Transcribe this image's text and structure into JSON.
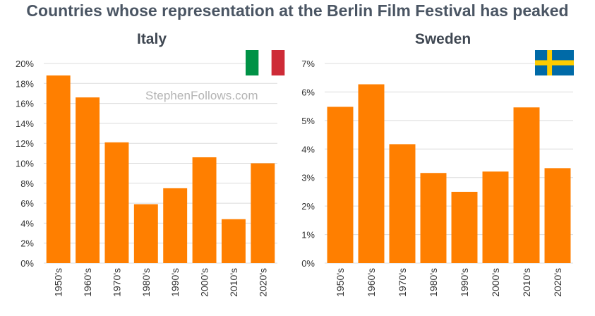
{
  "title": "Countries whose representation at the Berlin Film Festival has peaked",
  "watermark": "StephenFollows.com",
  "colors": {
    "bar": "#ff7f00",
    "grid": "#dcdcdc",
    "axis_text": "#333333"
  },
  "flags": {
    "italy": {
      "name": "italy-flag",
      "colors": [
        "#009246",
        "#ffffff",
        "#ce2b37"
      ]
    },
    "sweden": {
      "name": "sweden-flag",
      "colors": [
        "#006aa7",
        "#fecc00"
      ]
    }
  },
  "chart_data": [
    {
      "type": "bar",
      "title": "Italy",
      "categories": [
        "1950's",
        "1960's",
        "1970's",
        "1980's",
        "1990's",
        "2000's",
        "2010's",
        "2020's"
      ],
      "values": [
        18.8,
        16.6,
        12.1,
        5.9,
        7.5,
        10.6,
        4.4,
        10.0
      ],
      "yticks": [
        "0%",
        "2%",
        "4%",
        "6%",
        "8%",
        "10%",
        "12%",
        "14%",
        "16%",
        "18%",
        "20%"
      ],
      "ylim": [
        0,
        20
      ],
      "xlabel": "",
      "ylabel": "",
      "grid": true
    },
    {
      "type": "bar",
      "title": "Sweden",
      "categories": [
        "1950's",
        "1960's",
        "1970's",
        "1980's",
        "1990's",
        "2000's",
        "2010's",
        "2020's"
      ],
      "values": [
        5.48,
        6.27,
        4.17,
        3.16,
        2.5,
        3.21,
        5.46,
        3.33
      ],
      "yticks": [
        "0%",
        "1%",
        "2%",
        "3%",
        "4%",
        "5%",
        "6%",
        "7%"
      ],
      "ylim": [
        0,
        7
      ],
      "xlabel": "",
      "ylabel": "",
      "grid": true
    }
  ]
}
